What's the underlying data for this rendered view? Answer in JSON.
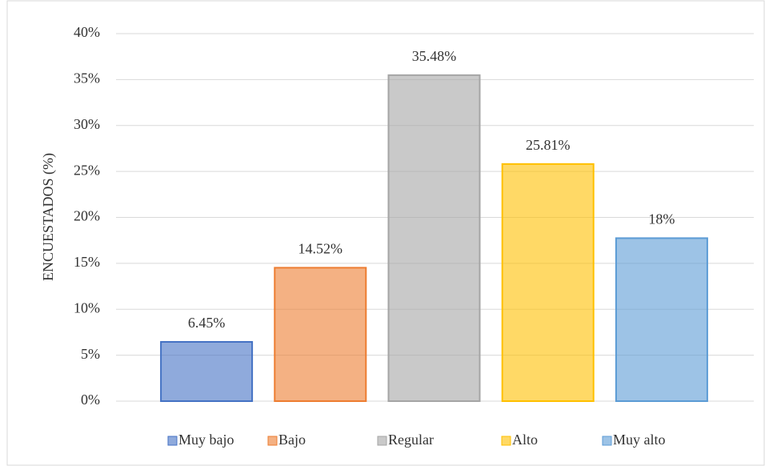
{
  "chart_data": {
    "type": "bar",
    "y_label": "ENCUESTADOS (%)",
    "categories": [
      "Muy bajo",
      "Bajo",
      "Regular",
      "Alto",
      "Muy alto"
    ],
    "values": [
      6.45,
      14.52,
      35.48,
      25.81,
      17.74
    ],
    "value_labels": [
      "6.45%",
      "14.52%",
      "35.48%",
      "25.81%",
      "18%"
    ],
    "colors": [
      "#4472c4",
      "#ed7d31",
      "#a5a5a5",
      "#ffc000",
      "#5b9bd5"
    ],
    "ylim": [
      0,
      40
    ],
    "yticks": [
      {
        "value": 0,
        "label": "0%"
      },
      {
        "value": 5,
        "label": "5%"
      },
      {
        "value": 10,
        "label": "10%"
      },
      {
        "value": 15,
        "label": "15%"
      },
      {
        "value": 20,
        "label": "20%"
      },
      {
        "value": 25,
        "label": "25%"
      },
      {
        "value": 30,
        "label": "30%"
      },
      {
        "value": 35,
        "label": "35%"
      },
      {
        "value": 40,
        "label": "40%"
      }
    ],
    "grid": true,
    "legend": "bottom"
  }
}
